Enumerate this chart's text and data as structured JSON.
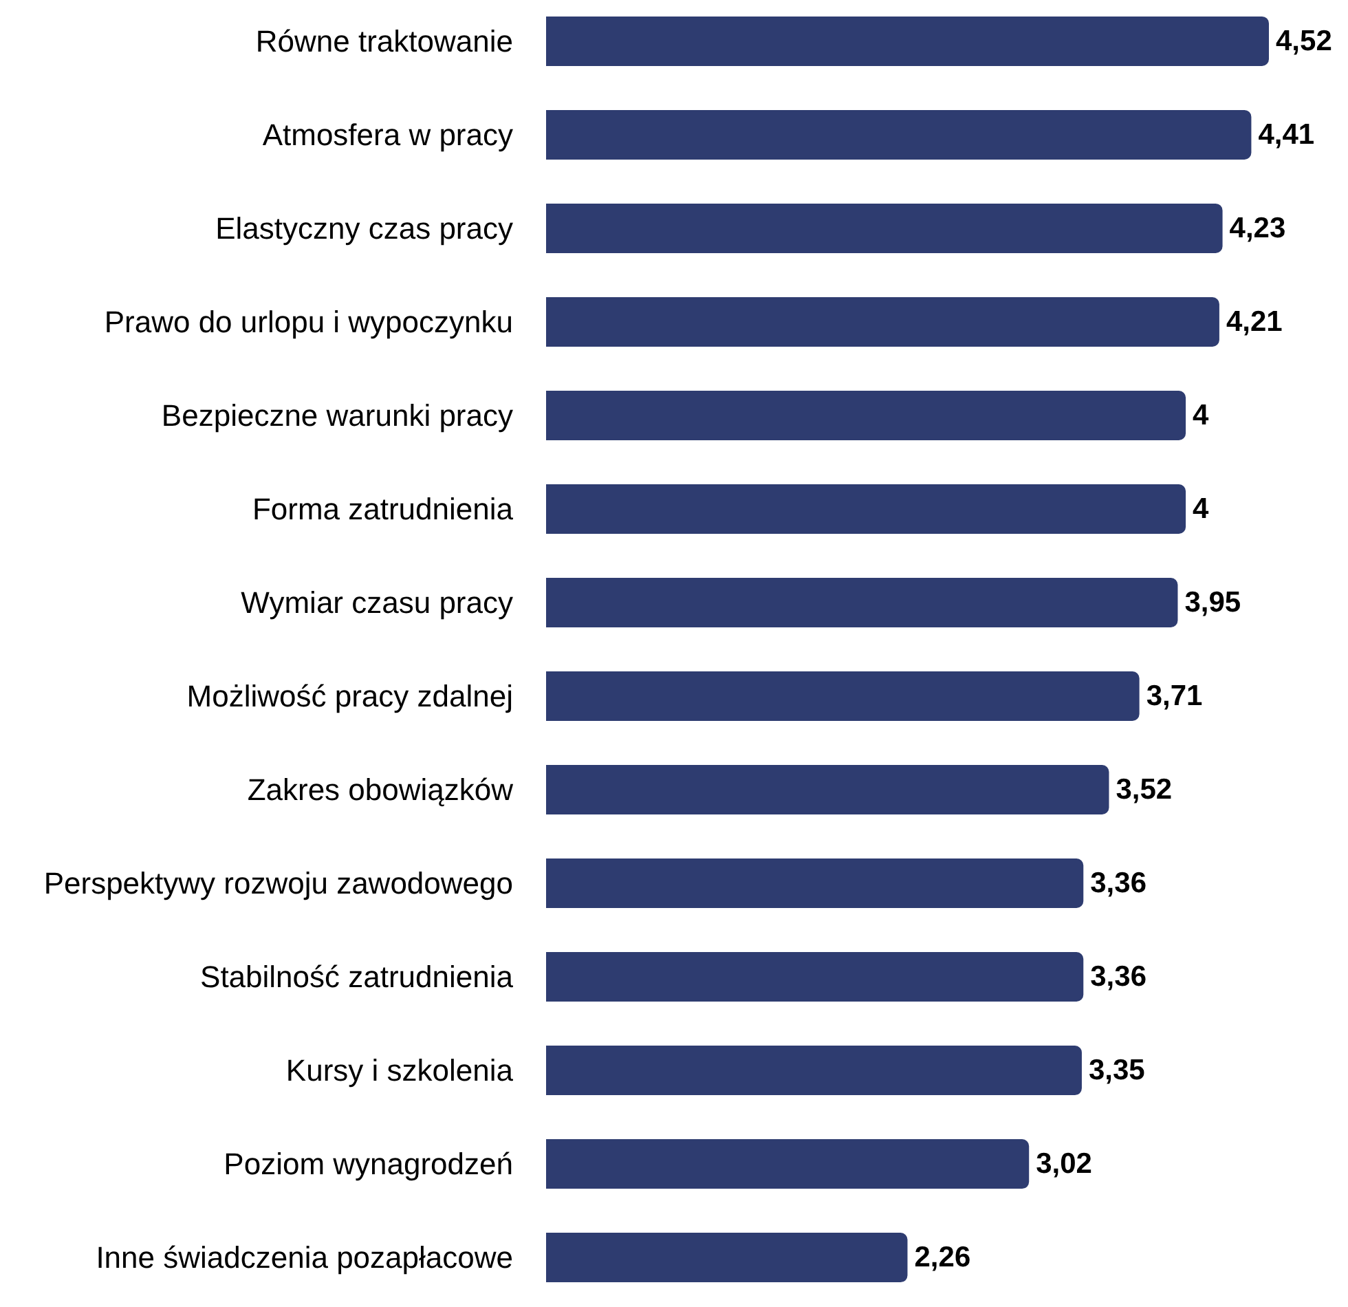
{
  "chart_data": {
    "type": "bar",
    "orientation": "horizontal",
    "categories": [
      "Równe traktowanie",
      "Atmosfera w pracy",
      "Elastyczny czas pracy",
      "Prawo do urlopu i wypoczynku",
      "Bezpieczne warunki pracy",
      "Forma zatrudnienia",
      "Wymiar czasu pracy",
      "Możliwość pracy zdalnej",
      "Zakres obowiązków",
      "Perspektywy rozwoju zawodowego",
      "Stabilność zatrudnienia",
      "Kursy i szkolenia",
      "Poziom wynagrodzeń",
      "Inne świadczenia pozapłacowe"
    ],
    "values": [
      4.52,
      4.41,
      4.23,
      4.21,
      4,
      4,
      3.95,
      3.71,
      3.52,
      3.36,
      3.36,
      3.35,
      3.02,
      2.26
    ],
    "value_labels": [
      "4,52",
      "4,41",
      "4,23",
      "4,21",
      "4",
      "4",
      "3,95",
      "3,71",
      "3,52",
      "3,36",
      "3,36",
      "3,35",
      "3,02",
      "2,26"
    ],
    "color": "#2e3c70",
    "tick_labels": "y"
  }
}
